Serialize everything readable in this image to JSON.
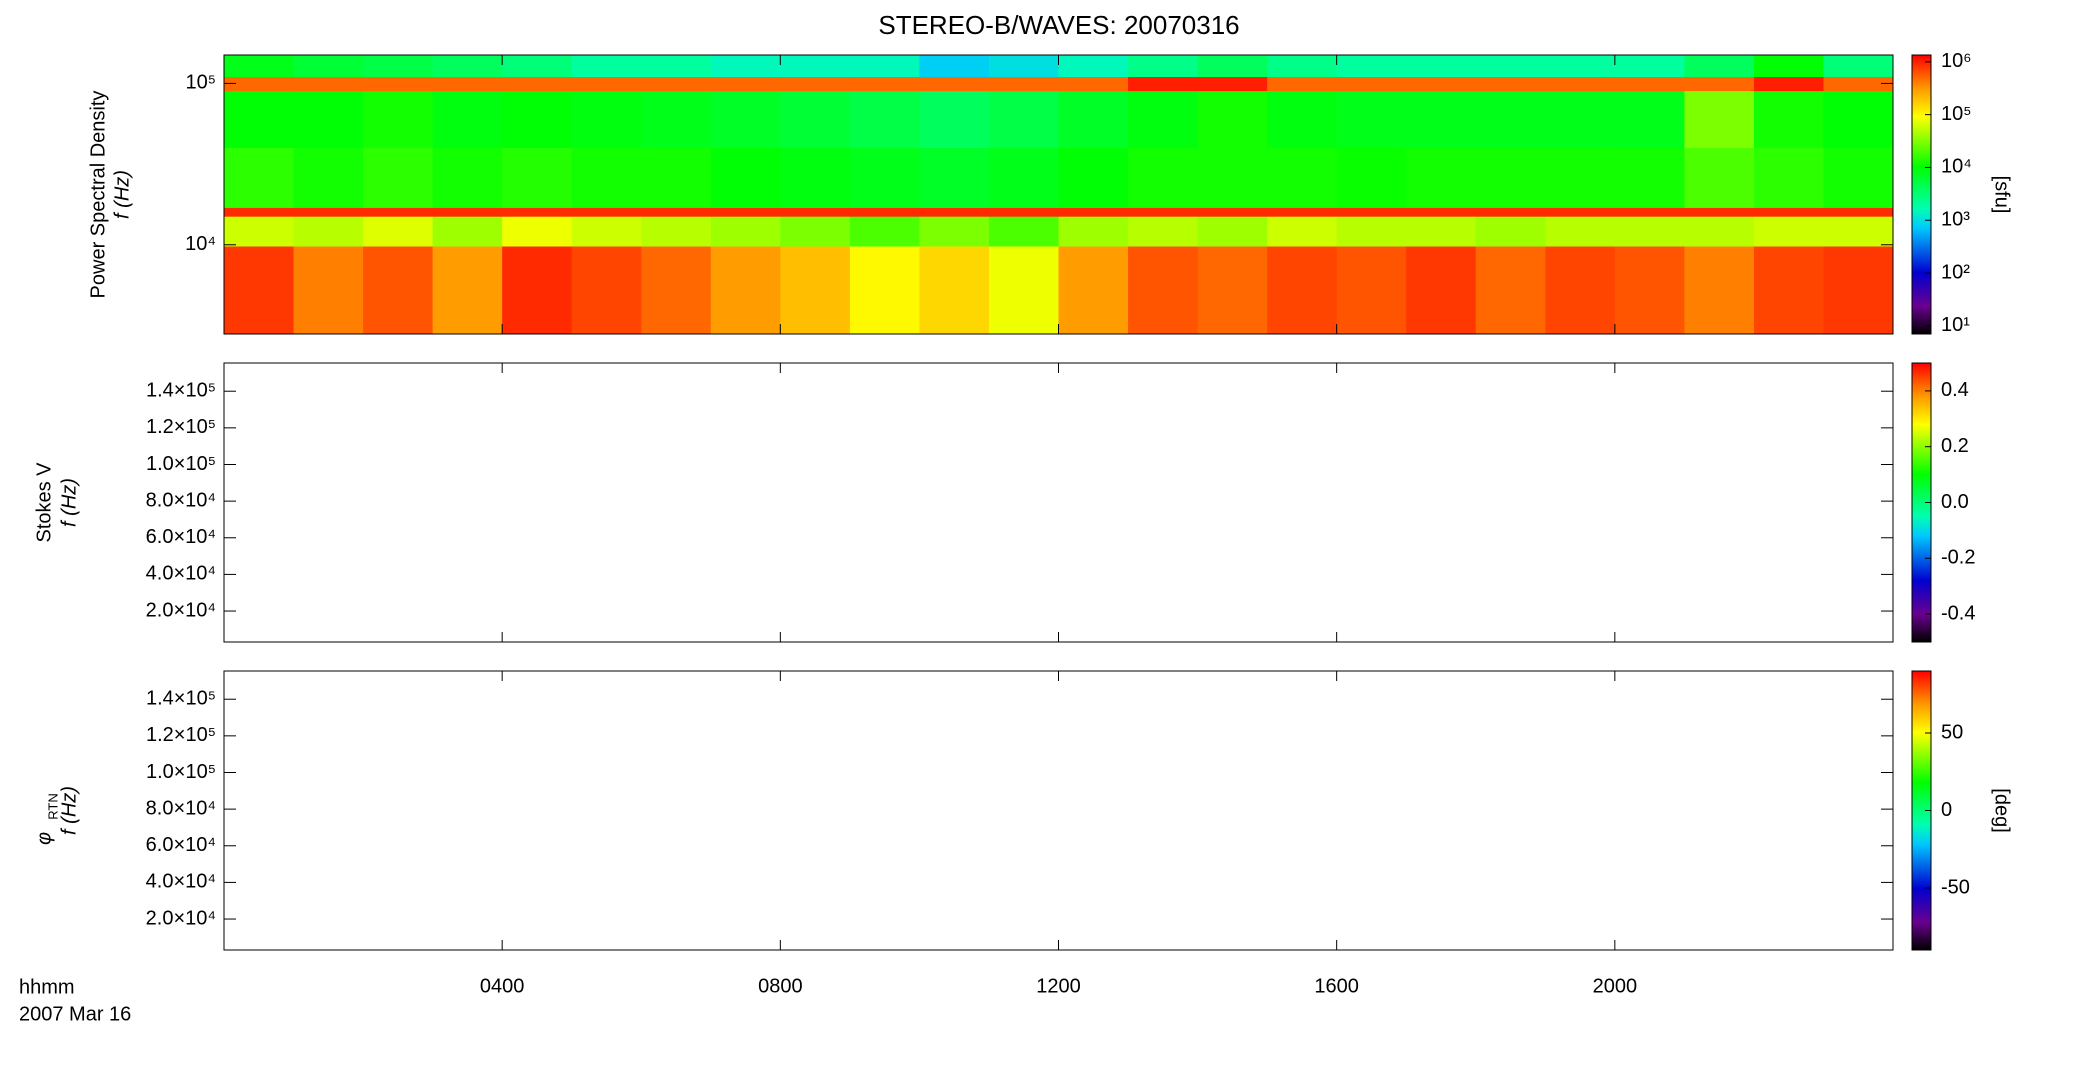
{
  "chart_data": [
    {
      "type": "heatmap",
      "title": "STEREO-B/WAVES: 20070316",
      "ylabel_top": "Power Spectral Density",
      "ylabel": "f (Hz)",
      "log_y": true,
      "ylim": [
        2800,
        150000
      ],
      "yticks": [
        {
          "value": 10000,
          "label": "10⁴"
        },
        {
          "value": 100000,
          "label": "10⁵"
        }
      ],
      "xlim": [
        0,
        24
      ],
      "xticks": [
        4,
        8,
        12,
        16,
        20
      ],
      "xbins": [
        0,
        1,
        2,
        3,
        4,
        5,
        6,
        7,
        8,
        9,
        10,
        11,
        12,
        13,
        14,
        15,
        16,
        17,
        18,
        19,
        20,
        21,
        22,
        23,
        24
      ],
      "ybins": [
        2800,
        9800,
        15000,
        17000,
        40000,
        90000,
        110000,
        150000
      ],
      "z": [
        [
          800000,
          400000,
          600000,
          300000,
          900000,
          700000,
          500000,
          300000,
          200000,
          100000,
          150000,
          80000,
          300000,
          600000,
          500000,
          700000,
          600000,
          800000,
          500000,
          700000,
          600000,
          400000,
          700000,
          800000
        ],
        [
          60000,
          50000,
          70000,
          40000,
          80000,
          60000,
          50000,
          40000,
          30000,
          20000,
          30000,
          20000,
          40000,
          50000,
          40000,
          60000,
          50000,
          50000,
          40000,
          50000,
          50000,
          50000,
          60000,
          60000
        ],
        [
          900000,
          900000,
          900000,
          900000,
          900000,
          900000,
          900000,
          900000,
          900000,
          900000,
          900000,
          900000,
          900000,
          900000,
          900000,
          900000,
          900000,
          900000,
          900000,
          900000,
          900000,
          900000,
          900000,
          900000
        ],
        [
          15000,
          12000,
          15000,
          12000,
          14000,
          12000,
          12000,
          10000,
          9000,
          8000,
          7000,
          8000,
          10000,
          12000,
          12000,
          12000,
          11000,
          12000,
          12000,
          12000,
          12000,
          20000,
          15000,
          12000
        ],
        [
          10000,
          10000,
          12000,
          9000,
          10000,
          9000,
          8000,
          7000,
          6000,
          5000,
          4000,
          5000,
          7000,
          9000,
          12000,
          9000,
          8000,
          8000,
          8000,
          8000,
          8000,
          30000,
          12000,
          10000
        ],
        [
          500000,
          500000,
          500000,
          500000,
          500000,
          500000,
          500000,
          500000,
          500000,
          500000,
          500000,
          500000,
          500000,
          1000000,
          1000000,
          500000,
          500000,
          500000,
          500000,
          500000,
          500000,
          500000,
          1000000,
          500000
        ],
        [
          8000,
          6000,
          5000,
          4000,
          3000,
          2000,
          2000,
          1500,
          1500,
          1500,
          800,
          1000,
          1500,
          2500,
          4000,
          2500,
          2000,
          2000,
          2000,
          2000,
          2000,
          4000,
          10000,
          3000
        ]
      ],
      "colormap": "rainbow",
      "log_color": true,
      "clim": [
        7,
        1350000
      ],
      "cticks": [
        {
          "value": 10,
          "label": "10¹"
        },
        {
          "value": 100,
          "label": "10²"
        },
        {
          "value": 1000,
          "label": "10³"
        },
        {
          "value": 10000,
          "label": "10⁴"
        },
        {
          "value": 100000,
          "label": "10⁵"
        },
        {
          "value": 1000000,
          "label": "10⁶"
        }
      ],
      "clabel": "[sfu]"
    },
    {
      "type": "heatmap",
      "ylabel_top": "Stokes V",
      "ylabel": "f (Hz)",
      "ylim": [
        3100,
        155400
      ],
      "yticks": [
        {
          "value": 20000,
          "label": "2.0×10⁴"
        },
        {
          "value": 40000,
          "label": "4.0×10⁴"
        },
        {
          "value": 60000,
          "label": "6.0×10⁴"
        },
        {
          "value": 80000,
          "label": "8.0×10⁴"
        },
        {
          "value": 100000,
          "label": "1.0×10⁵"
        },
        {
          "value": 120000,
          "label": "1.2×10⁵"
        },
        {
          "value": 140000,
          "label": "1.4×10⁵"
        }
      ],
      "xlim": [
        0,
        24
      ],
      "xticks": [
        4,
        8,
        12,
        16,
        20
      ],
      "colormap": "rainbow",
      "clim": [
        -0.5,
        0.5
      ],
      "cticks": [
        -0.4,
        -0.2,
        {
          "value": 0,
          "label": "0.0"
        },
        0.2,
        0.4
      ]
    },
    {
      "type": "heatmap",
      "ylabel_symbol": "φ",
      "ylabel_sub": "RTN",
      "ylabel": "f (Hz)",
      "ylim": [
        3100,
        155400
      ],
      "yticks": [
        {
          "value": 20000,
          "label": "2.0×10⁴"
        },
        {
          "value": 40000,
          "label": "4.0×10⁴"
        },
        {
          "value": 60000,
          "label": "6.0×10⁴"
        },
        {
          "value": 80000,
          "label": "8.0×10⁴"
        },
        {
          "value": 100000,
          "label": "1.0×10⁵"
        },
        {
          "value": 120000,
          "label": "1.2×10⁵"
        },
        {
          "value": 140000,
          "label": "1.4×10⁵"
        }
      ],
      "xlim": [
        0,
        24
      ],
      "xticks": [
        {
          "value": 4,
          "label": "0400"
        },
        {
          "value": 8,
          "label": "0800"
        },
        {
          "value": 12,
          "label": "1200"
        },
        {
          "value": 16,
          "label": "1600"
        },
        {
          "value": 20,
          "label": "2000"
        }
      ],
      "xlabel": "hhmm",
      "date": "2007 Mar 16",
      "colormap": "rainbow",
      "clim": [
        -90,
        90
      ],
      "cticks": [
        -50,
        0,
        50
      ],
      "clabel": "[deg]"
    }
  ]
}
